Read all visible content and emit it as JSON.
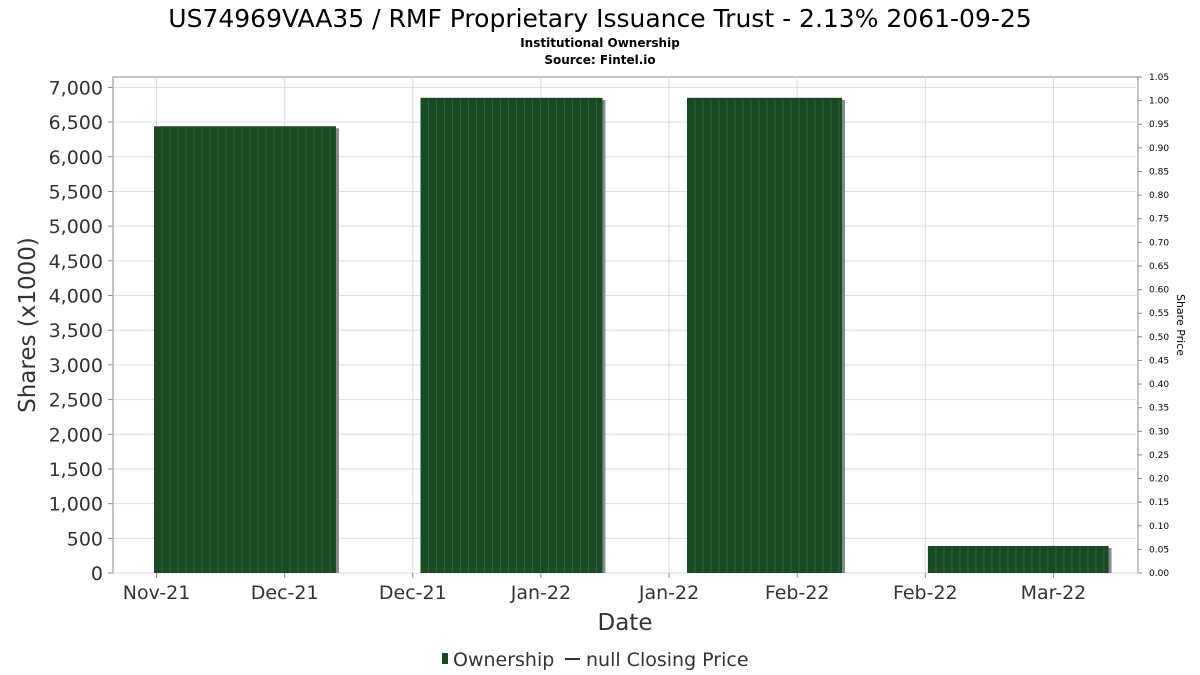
{
  "chart_data": {
    "type": "bar",
    "title": "US74969VAA35 / RMF Proprietary Issuance Trust - 2.13% 2061-09-25",
    "subtitle_lines": [
      "Institutional Ownership",
      "Source: Fintel.io"
    ],
    "xlabel": "Date",
    "ylabel": "Shares (x1000)",
    "y2label": "Share Price",
    "x_tick_labels": [
      "Nov-21",
      "Dec-21",
      "Dec-21",
      "Jan-22",
      "Jan-22",
      "Feb-22",
      "Feb-22",
      "Mar-22"
    ],
    "y_tick_labels": [
      "0",
      "500",
      "1,000",
      "1,500",
      "2,000",
      "2,500",
      "3,000",
      "3,500",
      "4,000",
      "4,500",
      "5,000",
      "5,500",
      "6,000",
      "6,500",
      "7,000"
    ],
    "y2_tick_labels": [
      "0.00",
      "0.05",
      "0.10",
      "0.15",
      "0.20",
      "0.25",
      "0.30",
      "0.35",
      "0.40",
      "0.45",
      "0.50",
      "0.55",
      "0.60",
      "0.65",
      "0.70",
      "0.75",
      "0.80",
      "0.85",
      "0.90",
      "0.95",
      "1.00",
      "1.05"
    ],
    "ylim": [
      0,
      7150
    ],
    "y2lim": [
      0,
      1.05
    ],
    "x_range": [
      0,
      8
    ],
    "series": [
      {
        "name": "Ownership",
        "kind": "bar",
        "color": "#1a4a23",
        "bars": [
          {
            "x_start": 0.32,
            "x_end": 1.74,
            "value": 6440
          },
          {
            "x_start": 2.4,
            "x_end": 3.82,
            "value": 6850
          },
          {
            "x_start": 4.48,
            "x_end": 5.69,
            "value": 6850
          },
          {
            "x_start": 6.36,
            "x_end": 7.77,
            "value": 390
          }
        ]
      },
      {
        "name": "null Closing Price",
        "kind": "line",
        "color": "#333333",
        "values": []
      }
    ],
    "grid": true,
    "legend_position": "bottom-center"
  }
}
